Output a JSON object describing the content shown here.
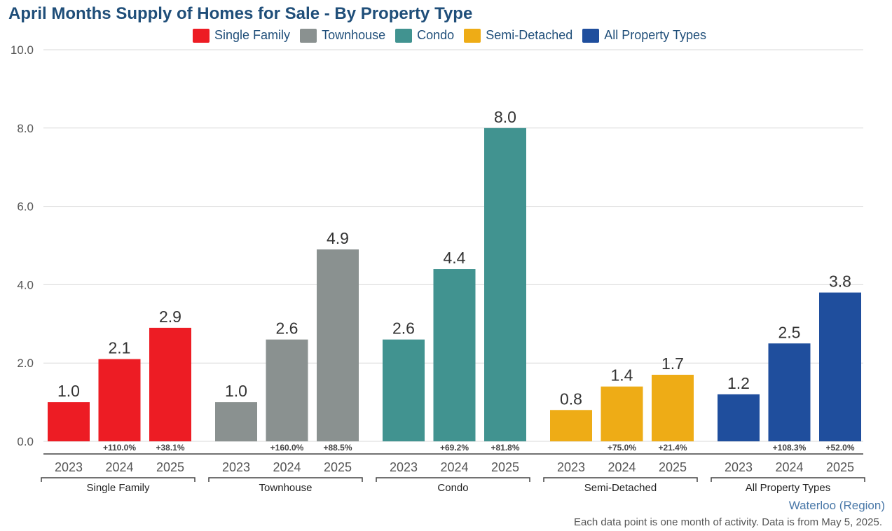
{
  "chart_data": {
    "type": "bar",
    "title": "April Months Supply of Homes for Sale - By Property Type",
    "ylim": [
      0,
      10
    ],
    "y_ticks": [
      "0.0",
      "2.0",
      "4.0",
      "6.0",
      "8.0",
      "10.0"
    ],
    "y_tick_values": [
      0,
      2,
      4,
      6,
      8,
      10
    ],
    "grid": true,
    "legend_position": "top-center",
    "years": [
      "2023",
      "2024",
      "2025"
    ],
    "groups": [
      {
        "name": "Single Family",
        "color": "#ed1c24",
        "values": [
          1.0,
          2.1,
          2.9
        ],
        "labels": [
          "1.0",
          "2.1",
          "2.9"
        ],
        "changes": [
          "",
          "+110.0%",
          "+38.1%"
        ]
      },
      {
        "name": "Townhouse",
        "color": "#8a9190",
        "values": [
          1.0,
          2.6,
          4.9
        ],
        "labels": [
          "1.0",
          "2.6",
          "4.9"
        ],
        "changes": [
          "",
          "+160.0%",
          "+88.5%"
        ]
      },
      {
        "name": "Condo",
        "color": "#419390",
        "values": [
          2.6,
          4.4,
          8.0
        ],
        "labels": [
          "2.6",
          "4.4",
          "8.0"
        ],
        "changes": [
          "",
          "+69.2%",
          "+81.8%"
        ]
      },
      {
        "name": "Semi-Detached",
        "color": "#eeac16",
        "values": [
          0.8,
          1.4,
          1.7
        ],
        "labels": [
          "0.8",
          "1.4",
          "1.7"
        ],
        "changes": [
          "",
          "+75.0%",
          "+21.4%"
        ]
      },
      {
        "name": "All Property Types",
        "color": "#1f4e9d",
        "values": [
          1.2,
          2.5,
          3.8
        ],
        "labels": [
          "1.2",
          "2.5",
          "3.8"
        ],
        "changes": [
          "",
          "+108.3%",
          "+52.0%"
        ]
      }
    ]
  },
  "legend": [
    {
      "label": "Single Family",
      "color": "#ed1c24"
    },
    {
      "label": "Townhouse",
      "color": "#8a9190"
    },
    {
      "label": "Condo",
      "color": "#419390"
    },
    {
      "label": "Semi-Detached",
      "color": "#eeac16"
    },
    {
      "label": "All Property Types",
      "color": "#1f4e9d"
    }
  ],
  "source_label": "Waterloo (Region)",
  "footnote": "Each data point is one month of activity. Data is from May 5, 2025."
}
